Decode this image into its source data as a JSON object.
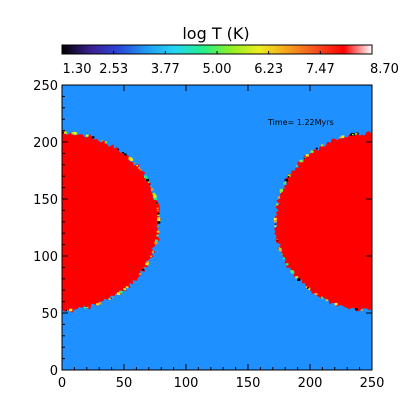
{
  "colorbar": {
    "title": "log T (K)",
    "tick_labels": [
      "1.30",
      "2.53",
      "3.77",
      "5.00",
      "6.23",
      "7.47",
      "8.70"
    ],
    "range": [
      1.3,
      8.7
    ],
    "colormap": [
      "#000000",
      "#3a1f8f",
      "#2a45d8",
      "#1f9cf2",
      "#25d6f4",
      "#25ef8c",
      "#8ff025",
      "#eded20",
      "#f7a11c",
      "#f5501f",
      "#ff0000",
      "#ffffff"
    ]
  },
  "plot": {
    "annotation": "Time= 1.22Myrs",
    "x_ticks": [
      "0",
      "50",
      "100",
      "150",
      "200",
      "250"
    ],
    "y_ticks": [
      "0",
      "50",
      "100",
      "150",
      "200",
      "250"
    ],
    "x_range": [
      0,
      250
    ],
    "y_range": [
      0,
      250
    ],
    "background_color": "#1e90ff",
    "hot_region_color": "#ff0000",
    "regions": [
      {
        "name": "left-hot-lobe",
        "center": [
          0,
          130
        ],
        "radius_x": 78,
        "radius_y": 78
      },
      {
        "name": "right-hot-lobe",
        "center": [
          250,
          130
        ],
        "radius_x": 78,
        "radius_y": 78
      }
    ]
  }
}
